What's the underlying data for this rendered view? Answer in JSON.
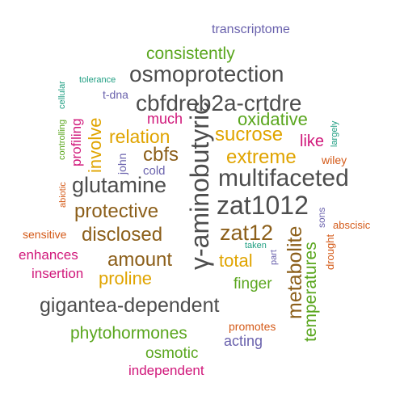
{
  "palette": {
    "gray": "#4d4d4d",
    "brown": "#8c5f1a",
    "gold": "#e0a400",
    "green": "#5aa61e",
    "magenta": "#d0177a",
    "orange": "#d45a18",
    "purple": "#6a62ad",
    "teal": "#1f9e82"
  },
  "words": [
    {
      "text": "transcriptome",
      "color": "purple"
    },
    {
      "text": "consistently",
      "color": "green"
    },
    {
      "text": "osmoprotection",
      "color": "gray"
    },
    {
      "text": "tolerance",
      "color": "teal"
    },
    {
      "text": "t-dna",
      "color": "purple"
    },
    {
      "text": "cbfdreb2a-crtdre",
      "color": "gray"
    },
    {
      "text": "cellular",
      "color": "teal"
    },
    {
      "text": "controlling",
      "color": "green"
    },
    {
      "text": "much",
      "color": "magenta"
    },
    {
      "text": "oxidative",
      "color": "green"
    },
    {
      "text": "largely",
      "color": "teal"
    },
    {
      "text": "profiling",
      "color": "magenta"
    },
    {
      "text": "involve",
      "color": "gold"
    },
    {
      "text": "relation",
      "color": "gold"
    },
    {
      "text": "γ-aminobutyric",
      "color": "gray"
    },
    {
      "text": "sucrose",
      "color": "gold"
    },
    {
      "text": "like",
      "color": "magenta"
    },
    {
      "text": "wiley",
      "color": "orange"
    },
    {
      "text": "cbfs",
      "color": "brown"
    },
    {
      "text": "extreme",
      "color": "gold"
    },
    {
      "text": "john",
      "color": "purple"
    },
    {
      "text": "cold",
      "color": "purple"
    },
    {
      "text": "multifaceted",
      "color": "gray"
    },
    {
      "text": "glutamine",
      "color": "gray"
    },
    {
      "text": "abiotic",
      "color": "orange"
    },
    {
      "text": "protective",
      "color": "brown"
    },
    {
      "text": "zat1012",
      "color": "gray"
    },
    {
      "text": "sons",
      "color": "purple"
    },
    {
      "text": "abscisic",
      "color": "orange"
    },
    {
      "text": "sensitive",
      "color": "orange"
    },
    {
      "text": "disclosed",
      "color": "brown"
    },
    {
      "text": "zat12",
      "color": "brown"
    },
    {
      "text": "taken",
      "color": "teal"
    },
    {
      "text": "metabolite",
      "color": "brown"
    },
    {
      "text": "drought",
      "color": "orange"
    },
    {
      "text": "enhances",
      "color": "magenta"
    },
    {
      "text": "amount",
      "color": "brown"
    },
    {
      "text": "total",
      "color": "gold"
    },
    {
      "text": "part",
      "color": "purple"
    },
    {
      "text": "insertion",
      "color": "magenta"
    },
    {
      "text": "proline",
      "color": "gold"
    },
    {
      "text": "finger",
      "color": "green"
    },
    {
      "text": "temperatures",
      "color": "green"
    },
    {
      "text": "gigantea-dependent",
      "color": "gray"
    },
    {
      "text": "promotes",
      "color": "orange"
    },
    {
      "text": "phytohormones",
      "color": "green"
    },
    {
      "text": "acting",
      "color": "purple"
    },
    {
      "text": "osmotic",
      "color": "green"
    },
    {
      "text": "independent",
      "color": "magenta"
    }
  ]
}
